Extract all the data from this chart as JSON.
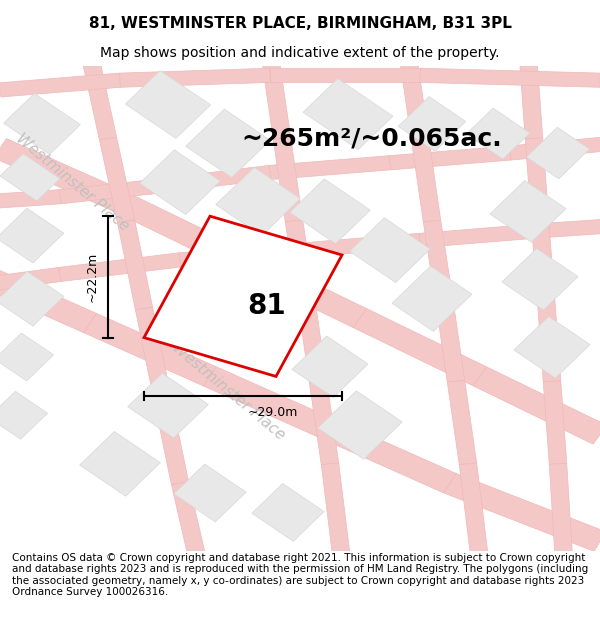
{
  "title": "81, WESTMINSTER PLACE, BIRMINGHAM, B31 3PL",
  "subtitle": "Map shows position and indicative extent of the property.",
  "area_label": "~265m²/~0.065ac.",
  "property_number": "81",
  "dim_width": "~29.0m",
  "dim_height": "~22.2m",
  "footer": "Contains OS data © Crown copyright and database right 2021. This information is subject to Crown copyright and database rights 2023 and is reproduced with the permission of HM Land Registry. The polygons (including the associated geometry, namely x, y co-ordinates) are subject to Crown copyright and database rights 2023 Ordnance Survey 100026316.",
  "bg_color": "#ffffff",
  "map_bg": "#ffffff",
  "road_color": "#f5c8c8",
  "road_outline": "#f0b8b8",
  "block_fill": "#e8e8e8",
  "block_edge": "#d8d8d8",
  "property_fill": "white",
  "property_edge": "#dd0000",
  "title_fontsize": 11,
  "subtitle_fontsize": 10,
  "area_fontsize": 18,
  "number_fontsize": 20,
  "street_fontsize": 11,
  "footer_fontsize": 7.5,
  "dim_fontsize": 9
}
